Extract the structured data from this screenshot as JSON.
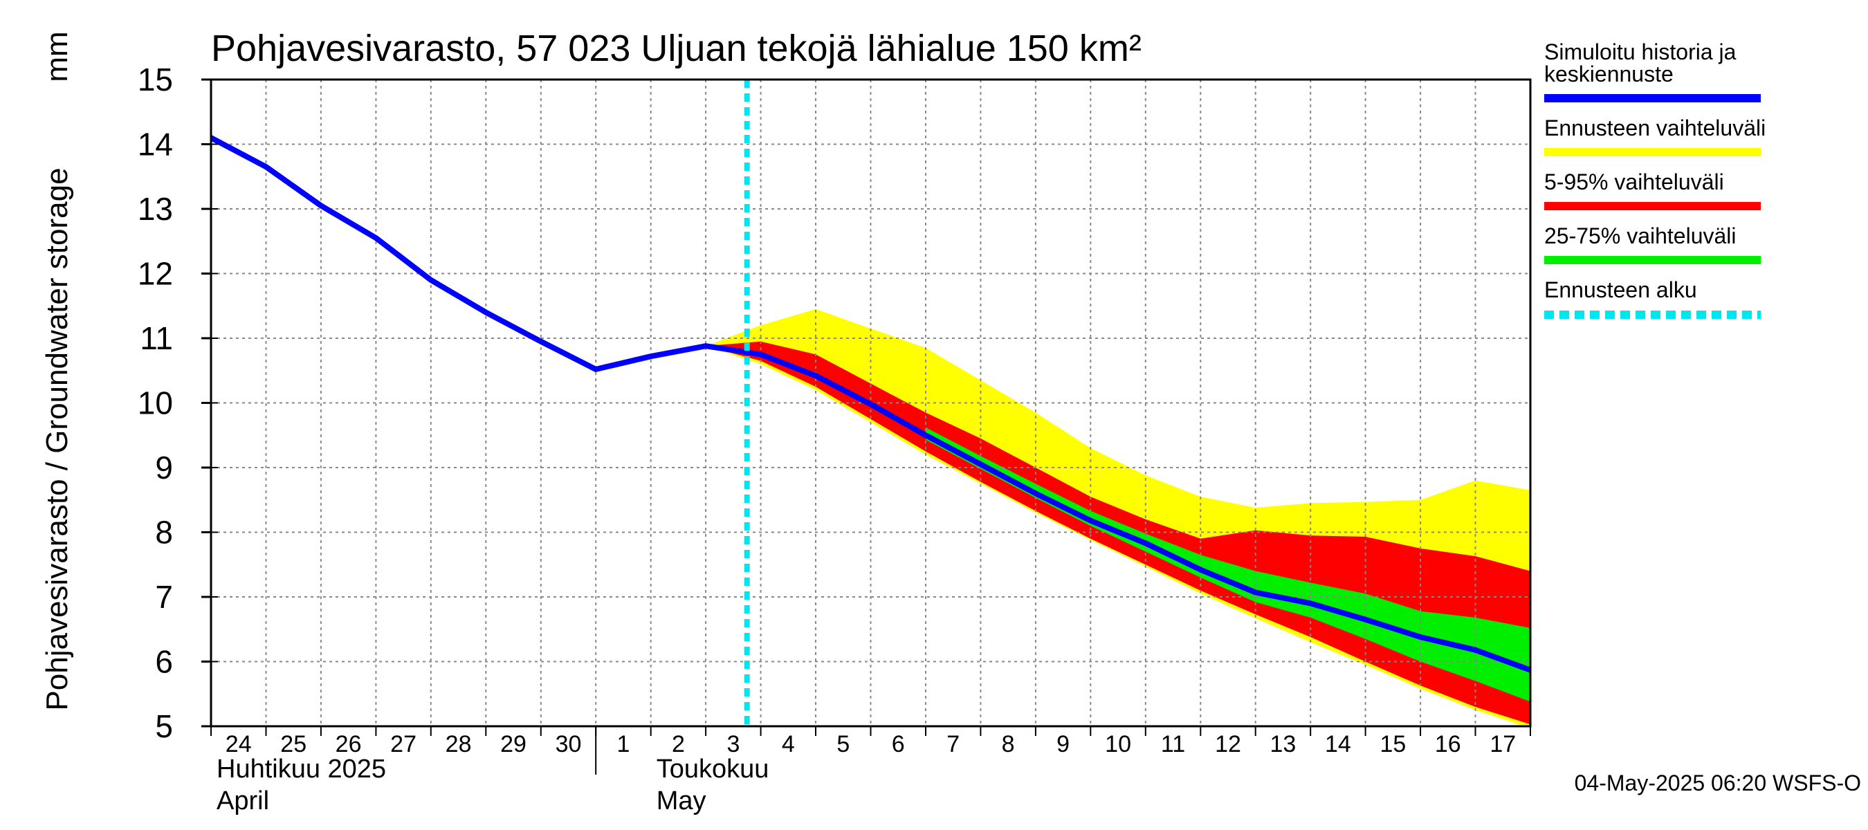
{
  "chart_data": {
    "type": "area",
    "title": "Pohjavesivarasto, 57 023 Uljuan tekojä lähialue 150 km²",
    "ylabel": "Pohjavesivarasto / Groundwater storage",
    "yunit": "mm",
    "ylim": [
      5,
      15
    ],
    "yticks": [
      5,
      6,
      7,
      8,
      9,
      10,
      11,
      12,
      13,
      14,
      15
    ],
    "xlim": [
      "2025-04-24",
      "2025-05-18"
    ],
    "x_tick_labels": [
      "24",
      "25",
      "26",
      "27",
      "28",
      "29",
      "30",
      "1",
      "2",
      "3",
      "4",
      "5",
      "6",
      "7",
      "8",
      "9",
      "10",
      "11",
      "12",
      "13",
      "14",
      "15",
      "16",
      "17"
    ],
    "month_labels": [
      {
        "line1": "Huhtikuu  2025",
        "line2": "April"
      },
      {
        "line1": "Toukokuu",
        "line2": "May"
      }
    ],
    "forecast_start": "2025-05-04",
    "grid": true,
    "legend_position": "right",
    "legend": [
      {
        "name": "Simuloitu historia ja keskiennuste",
        "lines": [
          "Simuloitu historia ja",
          "keskiennuste"
        ],
        "color": "#0000ff",
        "style": "solid"
      },
      {
        "name": "Ennusteen vaihteluväli",
        "lines": [
          "Ennusteen vaihteluväli"
        ],
        "color": "#ffff00",
        "style": "solid"
      },
      {
        "name": "5-95% vaihteluväli",
        "lines": [
          "5-95% vaihteluväli"
        ],
        "color": "#ff0000",
        "style": "solid"
      },
      {
        "name": "25-75% vaihteluväli",
        "lines": [
          "25-75% vaihteluväli"
        ],
        "color": "#00ee00",
        "style": "solid"
      },
      {
        "name": "Ennusteen alku",
        "lines": [
          "Ennusteen alku"
        ],
        "color": "#00e5ee",
        "style": "dashed"
      }
    ],
    "series": [
      {
        "name": "Simuloitu historia ja keskiennuste",
        "color": "#0000ff",
        "x": [
          "2025-04-24",
          "2025-04-25",
          "2025-04-26",
          "2025-04-27",
          "2025-04-28",
          "2025-04-29",
          "2025-04-30",
          "2025-05-01",
          "2025-05-02",
          "2025-05-03",
          "2025-05-04",
          "2025-05-05",
          "2025-05-06",
          "2025-05-07",
          "2025-05-08",
          "2025-05-09",
          "2025-05-10",
          "2025-05-11",
          "2025-05-12",
          "2025-05-13",
          "2025-05-14",
          "2025-05-15",
          "2025-05-16",
          "2025-05-17",
          "2025-05-18"
        ],
        "y": [
          14.1,
          13.65,
          13.05,
          12.55,
          11.9,
          11.4,
          10.95,
          10.52,
          10.72,
          10.88,
          10.75,
          10.42,
          9.98,
          9.5,
          9.05,
          8.6,
          8.18,
          7.83,
          7.42,
          7.07,
          6.9,
          6.65,
          6.38,
          6.18,
          5.87
        ]
      }
    ],
    "bands": [
      {
        "name": "Ennusteen vaihteluväli",
        "color": "#ffff00",
        "x": [
          "2025-05-03",
          "2025-05-04",
          "2025-05-05",
          "2025-05-06",
          "2025-05-07",
          "2025-05-08",
          "2025-05-09",
          "2025-05-10",
          "2025-05-11",
          "2025-05-12",
          "2025-05-13",
          "2025-05-14",
          "2025-05-15",
          "2025-05-16",
          "2025-05-17",
          "2025-05-18"
        ],
        "upper": [
          10.88,
          11.2,
          11.45,
          11.15,
          10.85,
          10.35,
          9.85,
          9.3,
          8.88,
          8.55,
          8.38,
          8.45,
          8.47,
          8.5,
          8.8,
          8.65
        ],
        "lower": [
          10.88,
          10.6,
          10.2,
          9.7,
          9.2,
          8.75,
          8.3,
          7.88,
          7.47,
          7.05,
          6.67,
          6.3,
          5.95,
          5.58,
          5.25,
          4.97
        ]
      },
      {
        "name": "5-95% vaihteluväli",
        "color": "#ff0000",
        "x": [
          "2025-05-03",
          "2025-05-04",
          "2025-05-05",
          "2025-05-06",
          "2025-05-07",
          "2025-05-08",
          "2025-05-09",
          "2025-05-10",
          "2025-05-11",
          "2025-05-12",
          "2025-05-13",
          "2025-05-14",
          "2025-05-15",
          "2025-05-16",
          "2025-05-17",
          "2025-05-18"
        ],
        "upper": [
          10.88,
          10.95,
          10.75,
          10.3,
          9.85,
          9.45,
          9.0,
          8.55,
          8.2,
          7.9,
          8.03,
          7.95,
          7.93,
          7.75,
          7.63,
          7.4
        ],
        "lower": [
          10.88,
          10.65,
          10.25,
          9.75,
          9.25,
          8.78,
          8.33,
          7.9,
          7.5,
          7.1,
          6.73,
          6.38,
          6.0,
          5.63,
          5.3,
          5.03
        ]
      },
      {
        "name": "25-75% vaihteluväli",
        "color": "#00ee00",
        "x": [
          "2025-05-07",
          "2025-05-08",
          "2025-05-09",
          "2025-05-10",
          "2025-05-11",
          "2025-05-12",
          "2025-05-13",
          "2025-05-14",
          "2025-05-15",
          "2025-05-16",
          "2025-05-17",
          "2025-05-18"
        ],
        "upper": [
          9.62,
          9.18,
          8.75,
          8.33,
          7.98,
          7.65,
          7.4,
          7.22,
          7.05,
          6.78,
          6.68,
          6.52
        ],
        "lower": [
          9.43,
          8.98,
          8.53,
          8.1,
          7.7,
          7.3,
          6.92,
          6.68,
          6.35,
          6.0,
          5.7,
          5.38
        ]
      }
    ]
  },
  "footer": "04-May-2025 06:20 WSFS-O"
}
